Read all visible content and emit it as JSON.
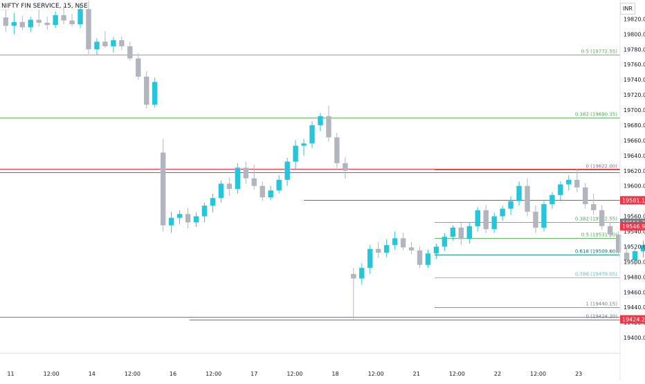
{
  "header": {
    "title": "NIFTY FIN SERVICE, 15, NSE",
    "currency": "INR"
  },
  "colors": {
    "up": "#26c6da",
    "down": "#b2b5be",
    "red": "#f23645",
    "green": "#4caf50",
    "grey": "#787b86",
    "blue": "#5bc0de"
  },
  "chart_data": {
    "type": "candlestick",
    "title": "NIFTY FIN SERVICE, 15, NSE",
    "currency": "INR",
    "ylim": [
      19380,
      19845
    ],
    "y_ticks": [
      "19820.00",
      "19800.00",
      "19780.00",
      "19760.00",
      "19740.00",
      "19720.00",
      "19700.00",
      "19680.00",
      "19660.00",
      "19640.00",
      "19620.00",
      "19600.00",
      "19580.00",
      "19560.00",
      "19540.00",
      "19520.00",
      "19500.00",
      "19480.00",
      "19460.00",
      "19440.00",
      "19420.00",
      "19400.00"
    ],
    "x_ticks": [
      {
        "label": "11",
        "x": 0.6
      },
      {
        "label": "12:00",
        "x": 5.5
      },
      {
        "label": "14",
        "x": 10.4
      },
      {
        "label": "12:00",
        "x": 15.3
      },
      {
        "label": "16",
        "x": 20.2
      },
      {
        "label": "12:00",
        "x": 25.1
      },
      {
        "label": "17",
        "x": 30.0
      },
      {
        "label": "12:00",
        "x": 34.9
      },
      {
        "label": "18",
        "x": 39.8
      },
      {
        "label": "12:00",
        "x": 44.7
      },
      {
        "label": "21",
        "x": 49.6
      },
      {
        "label": "12:00",
        "x": 54.5
      },
      {
        "label": "22",
        "x": 59.4
      },
      {
        "label": "12:00",
        "x": 64.3
      },
      {
        "label": "23",
        "x": 69.2
      }
    ],
    "x_range": [
      -0.7,
      74.2
    ],
    "candles": [
      [
        19822,
        19833,
        19803,
        19811
      ],
      [
        19811,
        19828,
        19800,
        19816
      ],
      [
        19816,
        19824,
        19805,
        19809
      ],
      [
        19809,
        19823,
        19803,
        19819
      ],
      [
        19819,
        19832,
        19810,
        19815
      ],
      [
        19815,
        19823,
        19806,
        19812
      ],
      [
        19812,
        19830,
        19808,
        19825
      ],
      [
        19825,
        19837,
        19813,
        19818
      ],
      [
        19818,
        19827,
        19810,
        19813
      ],
      [
        19813,
        19840,
        19808,
        19833
      ],
      [
        19833,
        19844,
        19772,
        19780
      ],
      [
        19780,
        19795,
        19773,
        19790
      ],
      [
        19790,
        19804,
        19782,
        19784
      ],
      [
        19784,
        19796,
        19776,
        19792
      ],
      [
        19792,
        19797,
        19779,
        19784
      ],
      [
        19784,
        19790,
        19765,
        19768
      ],
      [
        19768,
        19775,
        19740,
        19744
      ],
      [
        19744,
        19751,
        19702,
        19707
      ],
      [
        19707,
        19743,
        19703,
        19737
      ],
      [
        19644,
        19662,
        19540,
        19548
      ],
      [
        19548,
        19566,
        19538,
        19558
      ],
      [
        19558,
        19568,
        19550,
        19563
      ],
      [
        19563,
        19571,
        19544,
        19552
      ],
      [
        19552,
        19565,
        19546,
        19560
      ],
      [
        19560,
        19578,
        19552,
        19574
      ],
      [
        19574,
        19590,
        19565,
        19584
      ],
      [
        19584,
        19607,
        19578,
        19603
      ],
      [
        19603,
        19611,
        19587,
        19596
      ],
      [
        19596,
        19630,
        19590,
        19624
      ],
      [
        19624,
        19632,
        19603,
        19610
      ],
      [
        19610,
        19628,
        19595,
        19600
      ],
      [
        19600,
        19606,
        19580,
        19585
      ],
      [
        19585,
        19600,
        19581,
        19594
      ],
      [
        19594,
        19614,
        19590,
        19608
      ],
      [
        19608,
        19637,
        19600,
        19632
      ],
      [
        19632,
        19660,
        19622,
        19653
      ],
      [
        19653,
        19662,
        19640,
        19656
      ],
      [
        19656,
        19685,
        19650,
        19680
      ],
      [
        19680,
        19696,
        19672,
        19692
      ],
      [
        19692,
        19706,
        19658,
        19664
      ],
      [
        19664,
        19670,
        19624,
        19630
      ],
      [
        19630,
        19638,
        19610,
        19620
      ],
      [
        19484,
        19492,
        19424,
        19478
      ],
      [
        19478,
        19498,
        19470,
        19492
      ],
      [
        19492,
        19522,
        19484,
        19517
      ],
      [
        19517,
        19526,
        19505,
        19512
      ],
      [
        19512,
        19530,
        19506,
        19522
      ],
      [
        19522,
        19540,
        19516,
        19531
      ],
      [
        19531,
        19538,
        19515,
        19519
      ],
      [
        19519,
        19526,
        19510,
        19515
      ],
      [
        19515,
        19520,
        19492,
        19496
      ],
      [
        19496,
        19516,
        19492,
        19511
      ],
      [
        19511,
        19524,
        19504,
        19520
      ],
      [
        19520,
        19538,
        19514,
        19533
      ],
      [
        19533,
        19548,
        19528,
        19545
      ],
      [
        19545,
        19553,
        19522,
        19530
      ],
      [
        19530,
        19552,
        19524,
        19547
      ],
      [
        19547,
        19572,
        19540,
        19568
      ],
      [
        19568,
        19575,
        19538,
        19543
      ],
      [
        19543,
        19565,
        19538,
        19560
      ],
      [
        19560,
        19574,
        19554,
        19570
      ],
      [
        19570,
        19586,
        19562,
        19580
      ],
      [
        19580,
        19606,
        19574,
        19600
      ],
      [
        19600,
        19610,
        19560,
        19566
      ],
      [
        19566,
        19574,
        19538,
        19545
      ],
      [
        19545,
        19580,
        19540,
        19576
      ],
      [
        19576,
        19592,
        19570,
        19588
      ],
      [
        19588,
        19606,
        19580,
        19602
      ],
      [
        19602,
        19614,
        19594,
        19608
      ],
      [
        19608,
        19623,
        19592,
        19598
      ],
      [
        19598,
        19604,
        19570,
        19576
      ],
      [
        19576,
        19590,
        19562,
        19568
      ],
      [
        19568,
        19575,
        19542,
        19547
      ],
      [
        19547,
        19552,
        19532,
        19536
      ],
      [
        19536,
        19540,
        19508,
        19512
      ],
      [
        19512,
        19520,
        19498,
        19502
      ],
      [
        19502,
        19518,
        19496,
        19514
      ],
      [
        19514,
        19528,
        19506,
        19522
      ],
      [
        19522,
        19537,
        19516,
        19532
      ],
      [
        19532,
        19539,
        19518,
        19522
      ],
      [
        19522,
        19534,
        19518,
        19530
      ],
      [
        19530,
        19544,
        19522,
        19538
      ],
      [
        19538,
        19552,
        19530,
        19547
      ],
      [
        19547,
        19552,
        19524,
        19530
      ],
      [
        19530,
        19540,
        19512,
        19518
      ],
      [
        19518,
        19522,
        19470,
        19475
      ],
      [
        19475,
        19484,
        19438,
        19488
      ],
      [
        19488,
        19498,
        19468,
        19496
      ],
      [
        19496,
        19508,
        19486,
        19502
      ],
      [
        19502,
        19507,
        19476,
        19480
      ],
      [
        19480,
        19490,
        19474,
        19486
      ],
      [
        19486,
        19496,
        19478,
        19491
      ],
      [
        19491,
        19498,
        19474,
        19477
      ],
      [
        19477,
        19487,
        19468,
        19482
      ],
      [
        19482,
        19490,
        19470,
        19475
      ],
      [
        19475,
        19484,
        19462,
        19466
      ],
      [
        19466,
        19482,
        19460,
        19478
      ],
      [
        19478,
        19492,
        19472,
        19487
      ],
      [
        19487,
        19497,
        19476,
        19480
      ],
      [
        19480,
        19486,
        19462,
        19466
      ],
      [
        19466,
        19484,
        19458,
        19479
      ],
      [
        19479,
        19496,
        19476,
        19492
      ],
      [
        19492,
        19504,
        19486,
        19499
      ],
      [
        19499,
        19508,
        19490,
        19495
      ],
      [
        19495,
        19502,
        19484,
        19488
      ],
      [
        19488,
        19494,
        19440,
        19454
      ],
      [
        19490,
        19530,
        19476,
        19522
      ],
      [
        19522,
        19540,
        19510,
        19536
      ],
      [
        19536,
        19544,
        19520,
        19526
      ],
      [
        19526,
        19532,
        19498,
        19508
      ],
      [
        19508,
        19544,
        19504,
        19539
      ],
      [
        19539,
        19555,
        19534,
        19552
      ],
      [
        19552,
        19574,
        19548,
        19570
      ],
      [
        19570,
        19586,
        19560,
        19582
      ],
      [
        19582,
        19606,
        19576,
        19600
      ],
      [
        19600,
        19622,
        19594,
        19616
      ],
      [
        19616,
        19620,
        19592,
        19596
      ],
      [
        19596,
        19604,
        19580,
        19584
      ],
      [
        19584,
        19604,
        19578,
        19598
      ],
      [
        19598,
        19610,
        19590,
        19606
      ],
      [
        19606,
        19612,
        19580,
        19584
      ],
      [
        19584,
        19600,
        19578,
        19596
      ],
      [
        19596,
        19608,
        19590,
        19604
      ],
      [
        19604,
        19610,
        19582,
        19586
      ],
      [
        19586,
        19608,
        19580,
        19602
      ],
      [
        19602,
        19612,
        19594,
        19608
      ],
      [
        19608,
        19622,
        19598,
        19614
      ],
      [
        19614,
        19622,
        19580,
        19584
      ],
      [
        19584,
        19586,
        19552,
        19562
      ],
      [
        19562,
        19566,
        19544,
        19547
      ]
    ],
    "levels": [
      {
        "label": "0.5 (19772.55)",
        "value": 19772.55,
        "color": "#4caf50",
        "x0": -0.7
      },
      {
        "label": "0.382 (19690.35)",
        "value": 19690.35,
        "color": "#4caf50",
        "x0": -0.7
      },
      {
        "label": "0 (19622.00)",
        "value": 19622.0,
        "color": "#787b86",
        "x0": 51.8
      },
      {
        "label": "0.382 (19552.55)",
        "value": 19552.55,
        "color": "#4caf50",
        "x0": 51.8
      },
      {
        "label": "0.5 (19531.30)",
        "value": 19531.3,
        "color": "#4caf50",
        "x0": 51.8
      },
      {
        "label": "0.618 (19509.60)",
        "value": 19509.6,
        "color": "#00796b",
        "x0": 51.8
      },
      {
        "label": "0.786 (19479.05)",
        "value": 19479.05,
        "color": "#5bc0de",
        "x0": 51.8
      },
      {
        "label": "1 (19440.15)",
        "value": 19440.15,
        "color": "#787b86",
        "x0": 51.8
      },
      {
        "label": "0 (19424.20)",
        "value": 19424.2,
        "color": "#787b86",
        "x0": 22.2
      }
    ],
    "hlines": [
      {
        "value": 19622.2,
        "color": "#f23645",
        "x0": -0.7
      },
      {
        "value": 19617.8,
        "color": "#f23645",
        "x0": -0.7
      },
      {
        "value": 19581.1,
        "color": "#f23645",
        "x0": 36.0
      },
      {
        "value": 19424.2,
        "color": "#f23645",
        "x0": 22.2
      },
      {
        "value": 19622.0,
        "color": "#f23645",
        "x0": 51.8
      },
      {
        "value": 19427.0,
        "color": "#787b86",
        "x0": -0.7
      }
    ],
    "price_labels": [
      {
        "text": "19581.10",
        "value": 19581.1,
        "color": "#f23645"
      },
      {
        "text": "19551.35",
        "value": 19551.35,
        "color": "#787b86"
      },
      {
        "text": "19546.95",
        "value": 19546.95,
        "color": "#f23645"
      },
      {
        "text": "19424.20",
        "value": 19424.2,
        "color": "#f23645"
      }
    ]
  }
}
